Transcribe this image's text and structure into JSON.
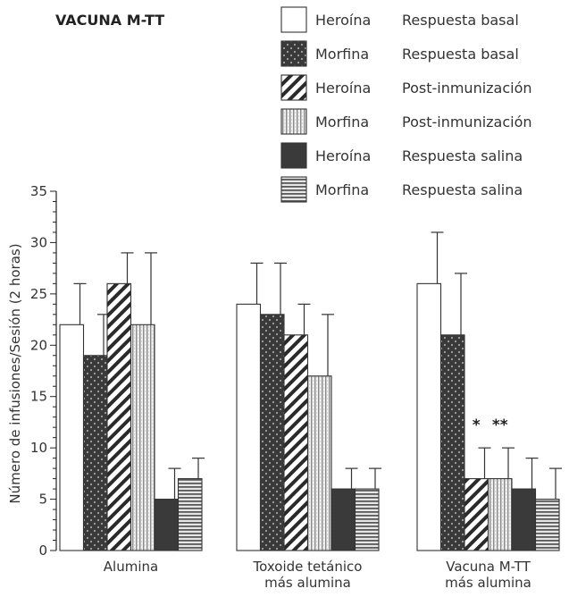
{
  "chart_data": {
    "type": "bar",
    "title": "VACUNA M-TT",
    "ylabel": "Número de infusiones/Sesión (2 horas)",
    "xlabel": "",
    "ylim": [
      0,
      35
    ],
    "yticks": [
      0,
      5,
      10,
      15,
      20,
      25,
      30,
      35
    ],
    "ytick_labels": [
      "0",
      "5",
      "10",
      "15",
      "20",
      "25",
      "30",
      "35"
    ],
    "categories": [
      [
        "Alumina"
      ],
      [
        "Toxoide tetánico",
        "más alumina"
      ],
      [
        "Vacuna M-TT",
        "más alumina"
      ]
    ],
    "legend_position": "top-right",
    "grid": false,
    "series": [
      {
        "name": [
          "Heroína",
          "Respuesta basal"
        ],
        "pattern": "white",
        "values": [
          22,
          24,
          26
        ],
        "errors": [
          4,
          4,
          5
        ]
      },
      {
        "name": [
          "Morfina",
          "Respuesta basal"
        ],
        "pattern": "dots",
        "values": [
          19,
          23,
          21
        ],
        "errors": [
          4,
          5,
          6
        ]
      },
      {
        "name": [
          "Heroína",
          "Post-inmunización"
        ],
        "pattern": "diagonal",
        "values": [
          26,
          21,
          7
        ],
        "errors": [
          3,
          3,
          3
        ]
      },
      {
        "name": [
          "Morfina",
          "Post-inmunización"
        ],
        "pattern": "vertical",
        "values": [
          22,
          17,
          7
        ],
        "errors": [
          7,
          6,
          3
        ]
      },
      {
        "name": [
          "Heroína",
          "Respuesta salina"
        ],
        "pattern": "solid",
        "values": [
          5,
          6,
          6
        ],
        "errors": [
          3,
          2,
          3
        ]
      },
      {
        "name": [
          "Morfina",
          "Respuesta salina"
        ],
        "pattern": "horizontal",
        "values": [
          7,
          6,
          5
        ],
        "errors": [
          2,
          2,
          3
        ]
      }
    ],
    "annotations": [
      {
        "text": "*",
        "category_index": 2,
        "series_index": 2
      },
      {
        "text": "**",
        "category_index": 2,
        "series_index": 3
      }
    ]
  }
}
